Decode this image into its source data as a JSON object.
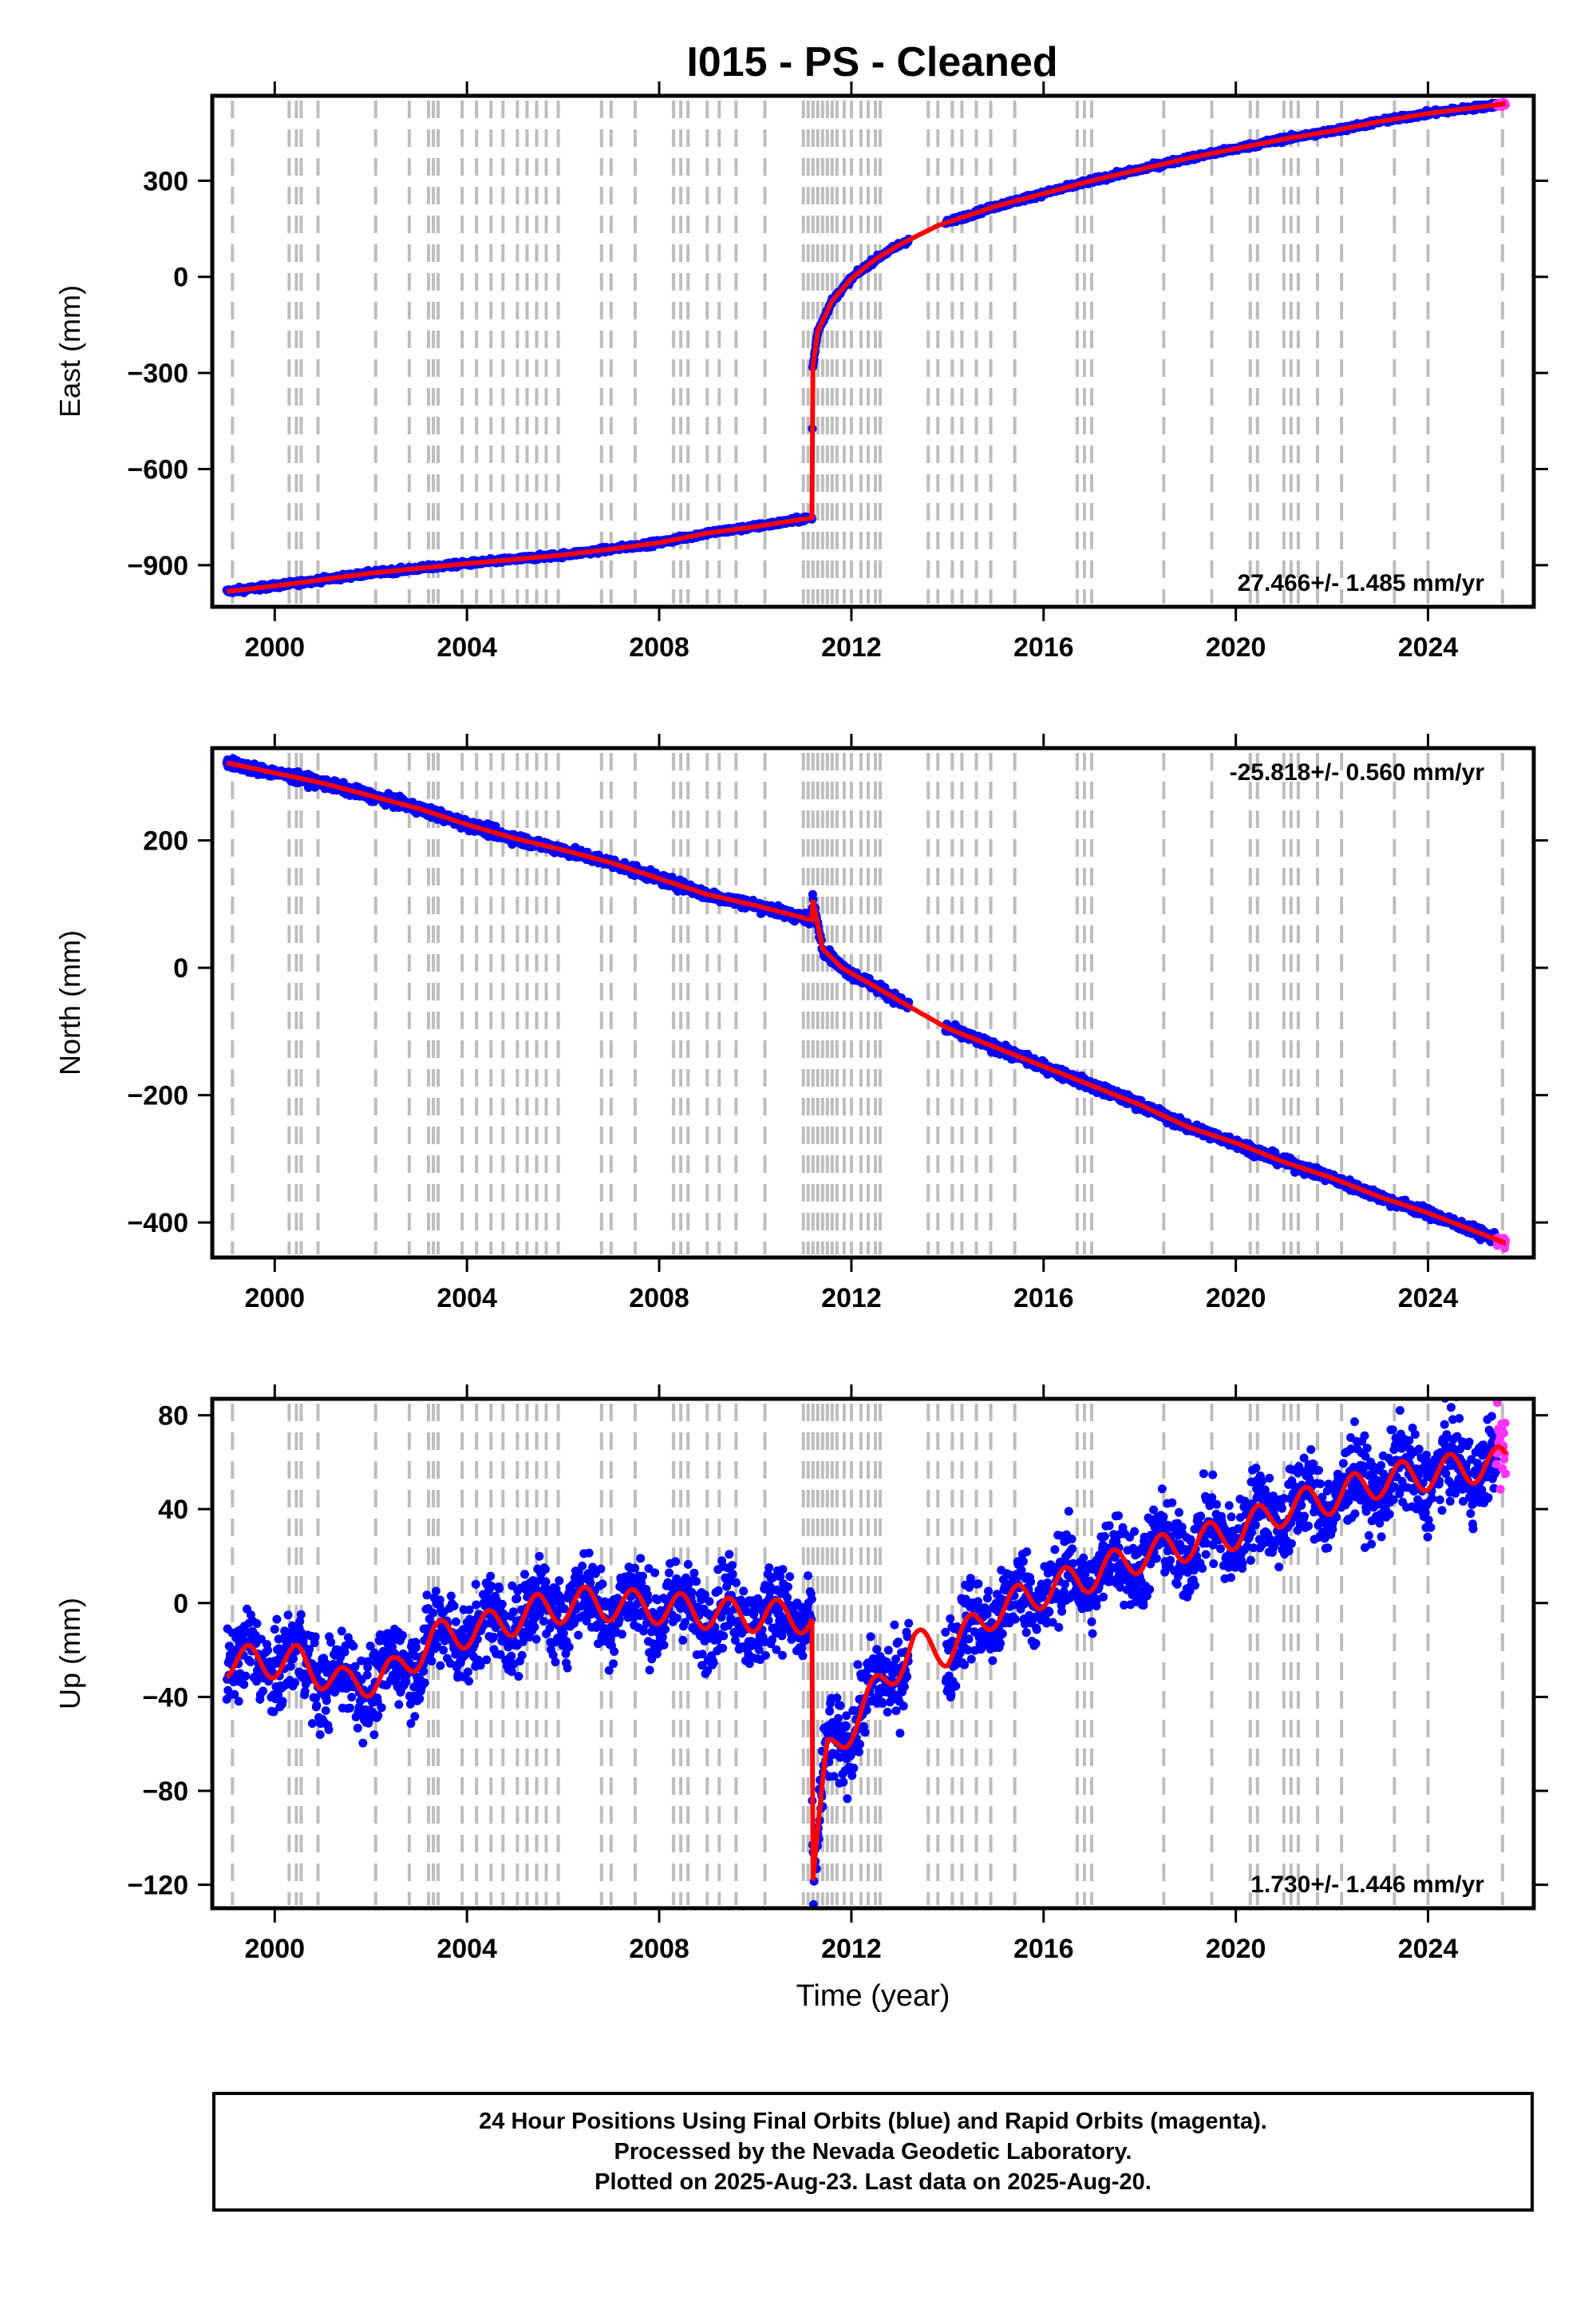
{
  "title": "I015  - PS - Cleaned",
  "colors": {
    "final_orbits": "#0000ff",
    "rapid_orbits": "#ff33ff",
    "model": "#ff0000",
    "event_lines": "#bdbdbd",
    "axes": "#000000"
  },
  "chart_data": [
    {
      "type": "scatter",
      "name": "east",
      "ylabel": "East (mm)",
      "xlabel": "",
      "xlim": [
        1998.7,
        2026.2
      ],
      "ylim": [
        -1030,
        565
      ],
      "yticks": [
        -900,
        -600,
        -300,
        0,
        300
      ],
      "xticks": [
        2000,
        2004,
        2008,
        2012,
        2016,
        2020,
        2024
      ],
      "rate_label": "27.466+/- 1.485 mm/yr",
      "rate_position": "bottom-right",
      "knots": [
        [
          1999.0,
          -982
        ],
        [
          2000.0,
          -965
        ],
        [
          2001.0,
          -945
        ],
        [
          2002.0,
          -925
        ],
        [
          2003.0,
          -910
        ],
        [
          2004.0,
          -895
        ],
        [
          2005.0,
          -882
        ],
        [
          2006.0,
          -868
        ],
        [
          2007.0,
          -850
        ],
        [
          2008.0,
          -830
        ],
        [
          2009.0,
          -800
        ],
        [
          2010.0,
          -780
        ],
        [
          2011.18,
          -752
        ],
        [
          2011.19,
          -290
        ],
        [
          2011.3,
          -170
        ],
        [
          2011.6,
          -75
        ],
        [
          2012.0,
          -5
        ],
        [
          2012.5,
          55
        ],
        [
          2013.0,
          100
        ],
        [
          2013.8,
          160
        ],
        [
          2015.0,
          220
        ],
        [
          2016.0,
          260
        ],
        [
          2017.0,
          300
        ],
        [
          2018.0,
          335
        ],
        [
          2019.0,
          370
        ],
        [
          2020.0,
          400
        ],
        [
          2021.0,
          430
        ],
        [
          2022.0,
          455
        ],
        [
          2023.0,
          485
        ],
        [
          2024.0,
          510
        ],
        [
          2025.6,
          540
        ]
      ],
      "gap": [
        2013.2,
        2013.95
      ],
      "noise": 4,
      "seasonal_amp": 0,
      "rapid_from": 2025.42
    },
    {
      "type": "scatter",
      "name": "north",
      "ylabel": "North (mm)",
      "xlabel": "",
      "xlim": [
        1998.7,
        2026.2
      ],
      "ylim": [
        -455,
        345
      ],
      "yticks": [
        -400,
        -200,
        0,
        200
      ],
      "xticks": [
        2000,
        2004,
        2008,
        2012,
        2016,
        2020,
        2024
      ],
      "rate_label": "-25.818+/- 0.560 mm/yr",
      "rate_position": "top-right",
      "knots": [
        [
          1999.0,
          322
        ],
        [
          2000.0,
          306
        ],
        [
          2001.0,
          290
        ],
        [
          2002.0,
          270
        ],
        [
          2003.0,
          250
        ],
        [
          2004.0,
          225
        ],
        [
          2005.0,
          203
        ],
        [
          2006.0,
          185
        ],
        [
          2007.0,
          165
        ],
        [
          2008.0,
          140
        ],
        [
          2009.0,
          115
        ],
        [
          2010.0,
          98
        ],
        [
          2011.18,
          75
        ],
        [
          2011.19,
          110
        ],
        [
          2011.4,
          30
        ],
        [
          2011.8,
          0
        ],
        [
          2012.5,
          -30
        ],
        [
          2013.3,
          -65
        ],
        [
          2014.0,
          -95
        ],
        [
          2015.0,
          -125
        ],
        [
          2016.0,
          -155
        ],
        [
          2017.0,
          -185
        ],
        [
          2018.0,
          -215
        ],
        [
          2019.0,
          -250
        ],
        [
          2020.0,
          -275
        ],
        [
          2021.0,
          -305
        ],
        [
          2022.0,
          -330
        ],
        [
          2023.0,
          -360
        ],
        [
          2024.0,
          -385
        ],
        [
          2025.6,
          -432
        ]
      ],
      "gap": [
        2013.2,
        2013.95
      ],
      "noise": 4,
      "seasonal_amp": 0,
      "rapid_from": 2025.42
    },
    {
      "type": "scatter",
      "name": "up",
      "ylabel": "Up (mm)",
      "xlabel": "Time (year)",
      "xlim": [
        1998.7,
        2026.2
      ],
      "ylim": [
        -130,
        87
      ],
      "yticks": [
        -120,
        -80,
        -40,
        0,
        40,
        80
      ],
      "xticks": [
        2000,
        2004,
        2008,
        2012,
        2016,
        2020,
        2024
      ],
      "rate_label": "1.730+/- 1.446 mm/yr",
      "rate_position": "bottom-right",
      "knots": [
        [
          1999.0,
          -25
        ],
        [
          2000.5,
          -25
        ],
        [
          2001.5,
          -35
        ],
        [
          2002.5,
          -30
        ],
        [
          2003.3,
          -15
        ],
        [
          2004.5,
          -10
        ],
        [
          2005.5,
          -3
        ],
        [
          2006.5,
          0
        ],
        [
          2008.0,
          -2
        ],
        [
          2009.5,
          -5
        ],
        [
          2011.18,
          -6
        ],
        [
          2011.19,
          -120
        ],
        [
          2011.5,
          -65
        ],
        [
          2012.0,
          -52
        ],
        [
          2012.6,
          -35
        ],
        [
          2013.3,
          -18
        ],
        [
          2014.0,
          -20
        ],
        [
          2015.0,
          -3
        ],
        [
          2016.0,
          5
        ],
        [
          2017.0,
          12
        ],
        [
          2018.0,
          20
        ],
        [
          2019.0,
          25
        ],
        [
          2020.0,
          30
        ],
        [
          2021.0,
          40
        ],
        [
          2022.0,
          45
        ],
        [
          2023.0,
          52
        ],
        [
          2024.0,
          55
        ],
        [
          2025.6,
          60
        ]
      ],
      "gap": [
        2013.2,
        2013.95
      ],
      "noise": 9,
      "seasonal_amp": 7,
      "rapid_from": 2025.42
    }
  ],
  "event_years": [
    1999.12,
    2000.3,
    2000.45,
    2000.55,
    2000.9,
    2002.1,
    2002.8,
    2003.2,
    2003.3,
    2003.4,
    2003.9,
    2004.2,
    2004.5,
    2004.75,
    2005.05,
    2005.25,
    2005.45,
    2005.65,
    2005.9,
    2006.8,
    2007.0,
    2007.5,
    2008.3,
    2008.45,
    2008.6,
    2009.0,
    2009.25,
    2009.6,
    2010.2,
    2011.0,
    2011.1,
    2011.2,
    2011.3,
    2011.4,
    2011.5,
    2011.6,
    2011.7,
    2011.85,
    2012.0,
    2012.2,
    2012.35,
    2012.5,
    2012.6,
    2013.6,
    2013.8,
    2014.1,
    2014.3,
    2014.6,
    2014.9,
    2015.4,
    2016.7,
    2016.85,
    2017.0,
    2018.5,
    2019.5,
    2020.3,
    2020.45,
    2021.0,
    2021.15,
    2021.3,
    2021.7,
    2022.2,
    2023.3,
    2024.0,
    2025.55
  ],
  "footer": {
    "line1": "24 Hour Positions Using Final Orbits (blue) and Rapid Orbits (magenta).",
    "line2": "Processed by the Nevada Geodetic Laboratory.",
    "line3": "Plotted on 2025-Aug-23. Last data on 2025-Aug-20."
  }
}
